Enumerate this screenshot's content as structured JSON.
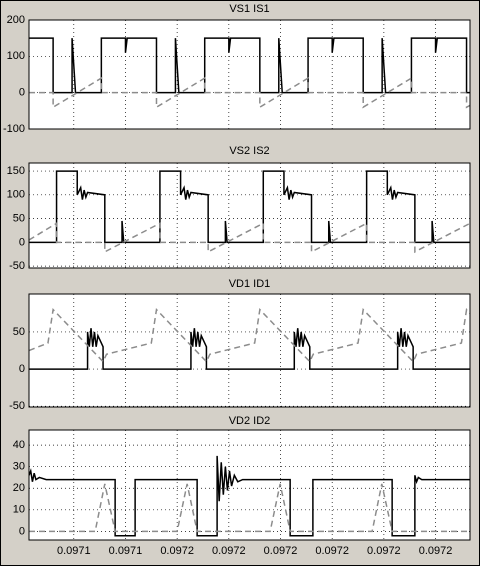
{
  "chart_data": [
    {
      "type": "line",
      "title": "VS1    IS1",
      "xlim": [
        0.097117,
        0.097245
      ],
      "ylim": [
        -100,
        200
      ],
      "yticks": [
        -100,
        0,
        100,
        200
      ],
      "grid": true,
      "series": [
        {
          "color": "#000000",
          "dashed": false,
          "x": [
            0.097117,
            0.097124,
            0.097124,
            0.0971295,
            0.0971295,
            0.0971305,
            0.097138,
            0.097138,
            0.097145,
            0.097145,
            0.0971455,
            0.097154,
            0.097154,
            0.0971595,
            0.0971595,
            0.0971605,
            0.097168,
            0.097168,
            0.097175,
            0.097175,
            0.0971755,
            0.097184,
            0.097184,
            0.0971895,
            0.0971895,
            0.0971905,
            0.097198,
            0.097198,
            0.097205,
            0.097205,
            0.0972055,
            0.097214,
            0.097214,
            0.0972195,
            0.0972195,
            0.0972205,
            0.097228,
            0.097228,
            0.097235,
            0.097235,
            0.0972355,
            0.097244,
            0.097244,
            0.097245
          ],
          "values": [
            150,
            150,
            0,
            0,
            150,
            0,
            0,
            150,
            150,
            110,
            150,
            150,
            0,
            0,
            150,
            0,
            0,
            150,
            150,
            110,
            150,
            150,
            0,
            0,
            150,
            0,
            0,
            150,
            150,
            110,
            150,
            150,
            0,
            0,
            150,
            0,
            0,
            150,
            150,
            110,
            150,
            150,
            0,
            0
          ]
        },
        {
          "color": "#8c8c8c",
          "dashed": true,
          "x": [
            0.097117,
            0.097124,
            0.097124,
            0.097138,
            0.097138,
            0.097154,
            0.097154,
            0.097168,
            0.097168,
            0.097184,
            0.097184,
            0.097198,
            0.097198,
            0.097214,
            0.097214,
            0.097228,
            0.097228,
            0.097244,
            0.097244,
            0.097245
          ],
          "values": [
            0,
            0,
            -40,
            40,
            0,
            0,
            -40,
            40,
            0,
            0,
            -40,
            40,
            0,
            0,
            -40,
            40,
            0,
            0,
            -40,
            -35
          ]
        }
      ]
    },
    {
      "type": "line",
      "title": "VS2  IS2",
      "xlim": [
        0.097117,
        0.097245
      ],
      "ylim": [
        -54,
        167
      ],
      "yticks": [
        -50,
        0,
        50,
        100,
        150
      ],
      "grid": true,
      "series": [
        {
          "color": "#000000",
          "dashed": false,
          "x": [
            0.097117,
            0.097125,
            0.097125,
            0.097131,
            0.097131,
            0.097132,
            0.0971325,
            0.097133,
            0.0971335,
            0.097134,
            0.097139,
            0.097139,
            0.097144,
            0.097144,
            0.0971445,
            0.097155,
            0.097155,
            0.097161,
            0.097161,
            0.097162,
            0.0971625,
            0.097163,
            0.0971635,
            0.097164,
            0.097169,
            0.097169,
            0.097174,
            0.097174,
            0.0971745,
            0.097185,
            0.097185,
            0.097191,
            0.097191,
            0.097192,
            0.0971925,
            0.097193,
            0.0971935,
            0.097194,
            0.097199,
            0.097199,
            0.097204,
            0.097204,
            0.0972045,
            0.097215,
            0.097215,
            0.097221,
            0.097221,
            0.097222,
            0.0972225,
            0.097223,
            0.0972235,
            0.097224,
            0.097229,
            0.097229,
            0.097234,
            0.097234,
            0.0972345,
            0.097245
          ],
          "values": [
            0,
            0,
            150,
            150,
            100,
            115,
            90,
            110,
            95,
            105,
            100,
            0,
            0,
            45,
            0,
            0,
            150,
            150,
            100,
            115,
            90,
            110,
            95,
            105,
            100,
            0,
            0,
            45,
            0,
            0,
            150,
            150,
            100,
            115,
            90,
            110,
            95,
            105,
            100,
            0,
            0,
            45,
            0,
            0,
            150,
            150,
            100,
            115,
            90,
            110,
            95,
            105,
            100,
            0,
            0,
            45,
            0,
            0
          ]
        },
        {
          "color": "#8c8c8c",
          "dashed": true,
          "x": [
            0.097117,
            0.097125,
            0.097125,
            0.097139,
            0.097139,
            0.097155,
            0.097155,
            0.097169,
            0.097169,
            0.097185,
            0.097185,
            0.097199,
            0.097199,
            0.097215,
            0.097215,
            0.097229,
            0.097229,
            0.097245
          ],
          "values": [
            5,
            40,
            0,
            0,
            -20,
            40,
            0,
            0,
            -20,
            40,
            0,
            0,
            -20,
            40,
            0,
            0,
            -20,
            40
          ]
        }
      ]
    },
    {
      "type": "line",
      "title": "VD1    ID1",
      "xlim": [
        0.097117,
        0.097245
      ],
      "ylim": [
        -51,
        101
      ],
      "yticks": [
        -50,
        0,
        50
      ],
      "grid": true,
      "series": [
        {
          "color": "#000000",
          "dashed": false,
          "x": [
            0.097117,
            0.097134,
            0.097134,
            0.0971345,
            0.097135,
            0.0971355,
            0.097136,
            0.0971365,
            0.097137,
            0.097138,
            0.0971385,
            0.0971385,
            0.097164,
            0.097164,
            0.0971645,
            0.097165,
            0.0971655,
            0.097166,
            0.0971665,
            0.097167,
            0.097168,
            0.0971685,
            0.0971685,
            0.097194,
            0.097194,
            0.0971945,
            0.097195,
            0.0971955,
            0.097196,
            0.0971965,
            0.097197,
            0.097198,
            0.0971985,
            0.0971985,
            0.097224,
            0.097224,
            0.0972245,
            0.097225,
            0.0972255,
            0.097226,
            0.0972265,
            0.097227,
            0.097228,
            0.0972285,
            0.0972285,
            0.097245
          ],
          "values": [
            0,
            0,
            50,
            30,
            55,
            30,
            50,
            30,
            45,
            35,
            30,
            0,
            0,
            50,
            30,
            55,
            30,
            50,
            30,
            45,
            35,
            30,
            0,
            0,
            50,
            30,
            55,
            30,
            50,
            30,
            45,
            35,
            30,
            0,
            0,
            50,
            30,
            55,
            30,
            50,
            30,
            45,
            35,
            30,
            0,
            0
          ]
        },
        {
          "color": "#8c8c8c",
          "dashed": true,
          "x": [
            0.097117,
            0.0971225,
            0.097124,
            0.0971385,
            0.0971395,
            0.0971525,
            0.097154,
            0.0971685,
            0.0971695,
            0.0971825,
            0.097184,
            0.0971985,
            0.0971995,
            0.0972125,
            0.097214,
            0.0972285,
            0.0972295,
            0.0972425,
            0.097244,
            0.097245
          ],
          "values": [
            25,
            35,
            80,
            10,
            20,
            35,
            80,
            10,
            20,
            35,
            80,
            10,
            20,
            35,
            80,
            10,
            20,
            35,
            80,
            75
          ]
        }
      ]
    },
    {
      "type": "line",
      "title": "VD2   ID2",
      "xlim": [
        0.097117,
        0.097245
      ],
      "ylim": [
        -4,
        47
      ],
      "yticks": [
        0,
        10,
        20,
        30,
        40
      ],
      "grid": true,
      "xticks": [
        {
          "value": 0.09713,
          "label": "0.0971"
        },
        {
          "value": 0.097145,
          "label": "0.0971"
        },
        {
          "value": 0.09716,
          "label": "0.0972"
        },
        {
          "value": 0.097175,
          "label": "0.0972"
        },
        {
          "value": 0.09719,
          "label": "0.0972"
        },
        {
          "value": 0.097205,
          "label": "0.0972"
        },
        {
          "value": 0.09722,
          "label": "0.0972"
        },
        {
          "value": 0.097235,
          "label": "0.0972"
        }
      ],
      "series": [
        {
          "color": "#000000",
          "dashed": false,
          "x": [
            0.097117,
            0.0971175,
            0.097118,
            0.0971185,
            0.097119,
            0.09712,
            0.097122,
            0.097142,
            0.097142,
            0.0971478,
            0.0971478,
            0.0971658,
            0.0971658,
            0.0971716,
            0.0971716,
            0.0971722,
            0.0971728,
            0.0971734,
            0.097174,
            0.0971746,
            0.0971752,
            0.0971758,
            0.0971766,
            0.0971776,
            0.097179,
            0.0971928,
            0.0971928,
            0.0971994,
            0.0971994,
            0.0972224,
            0.0972224,
            0.097229,
            0.097229,
            0.0972295,
            0.09723,
            0.097231,
            0.097245
          ],
          "values": [
            26,
            28,
            23,
            27,
            24,
            25,
            24,
            24,
            -2,
            -2,
            24,
            24,
            -2,
            -2,
            35,
            14,
            32,
            17,
            30,
            19,
            28,
            21,
            26,
            23,
            24,
            24,
            -2,
            -2,
            24,
            24,
            -2,
            -2,
            26,
            23,
            25,
            24,
            24
          ]
        },
        {
          "color": "#8c8c8c",
          "dashed": true,
          "x": [
            0.097117,
            0.0971362,
            0.097139,
            0.097142,
            0.09716,
            0.0971629,
            0.0971658,
            0.097187,
            0.0971899,
            0.0971928,
            0.0972166,
            0.0972194,
            0.0972224,
            0.097245
          ],
          "values": [
            0,
            0,
            22,
            0,
            0,
            22,
            0,
            0,
            22,
            0,
            0,
            22,
            0,
            0
          ]
        }
      ]
    }
  ]
}
